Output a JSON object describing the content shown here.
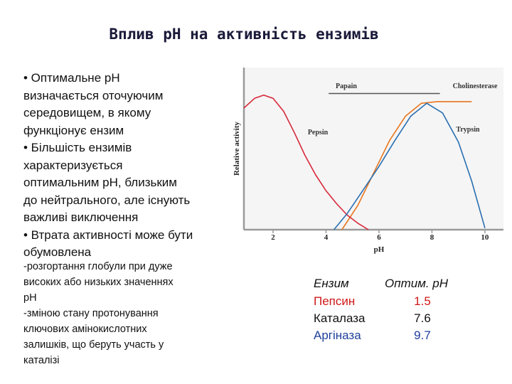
{
  "title": "Вплив pH на активність ензимів",
  "bullets": [
    "• Оптимальне pH",
    "визначається оточуючим",
    "середовищем, в якому",
    "функціонує ензим",
    "• Більшість ензимів",
    "характеризується",
    "оптимальним pH, близьким",
    "до нейтрального, але існують",
    "важливі виключення",
    "• Втрата активності може бути",
    "обумовлена"
  ],
  "notes": [
    "-розгортання глобули при дуже",
    "високих або низьких значеннях",
    "pH",
    "-зміною стану протонування",
    "ключових амінокислотних",
    "залишків, що беруть участь у",
    "каталізі"
  ],
  "table": {
    "header": [
      "Ензим",
      "Оптим. pH"
    ],
    "rows": [
      {
        "name": "Пепсин",
        "optimum": 1.5,
        "color": "#d01818"
      },
      {
        "name": "Каталаза",
        "optimum": 7.6,
        "color": "#111111"
      },
      {
        "name": "Аргіназа",
        "optimum": 9.7,
        "color": "#1f3f9a"
      }
    ]
  },
  "chart_data": {
    "type": "line",
    "xlabel": "pH",
    "ylabel": "Relative activity",
    "xlim": [
      0.9,
      10.7
    ],
    "xticks": [
      2,
      4,
      6,
      8,
      10
    ],
    "ylim": [
      0,
      1
    ],
    "series": [
      {
        "name": "Papain",
        "color": "#555555",
        "x": [
          4.1,
          8.3
        ],
        "values": [
          0.84,
          0.84
        ]
      },
      {
        "name": "Cholinesterase",
        "color": "#e8761e",
        "x": [
          4.6,
          5.2,
          5.8,
          6.4,
          7.0,
          7.6,
          8.2,
          9.5
        ],
        "values": [
          0,
          0.15,
          0.35,
          0.55,
          0.7,
          0.78,
          0.79,
          0.79
        ]
      },
      {
        "name": "Pepsin",
        "color": "#d8283a",
        "x": [
          0.9,
          1.3,
          1.65,
          2.0,
          2.4,
          2.8,
          3.2,
          3.6,
          4.0,
          4.4,
          4.8,
          5.2,
          5.6
        ],
        "values": [
          0.75,
          0.81,
          0.83,
          0.81,
          0.73,
          0.6,
          0.46,
          0.34,
          0.24,
          0.16,
          0.09,
          0.04,
          0
        ]
      },
      {
        "name": "Trypsin",
        "color": "#2a6fb0",
        "x": [
          4.3,
          4.8,
          5.3,
          6.0,
          6.6,
          7.2,
          7.8,
          8.4,
          9.0,
          9.5,
          10.0
        ],
        "values": [
          0,
          0.1,
          0.22,
          0.39,
          0.55,
          0.7,
          0.78,
          0.72,
          0.54,
          0.3,
          0.01
        ]
      }
    ]
  }
}
